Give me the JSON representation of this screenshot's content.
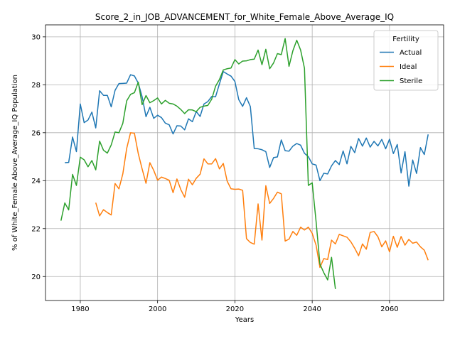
{
  "chart_data": {
    "type": "line",
    "title": "Score_2_in_JOB_ADVANCEMENT_for_White_Female_Above_Average_IQ",
    "xlabel": "Years",
    "ylabel": "% of White_Female Above_Average_IQ Population",
    "xlim": [
      1971,
      2074
    ],
    "ylim": [
      19,
      30.5
    ],
    "xticks": [
      1980,
      2000,
      2020,
      2040,
      2060
    ],
    "yticks": [
      20,
      22,
      24,
      26,
      28,
      30
    ],
    "grid": true,
    "legend": {
      "title": "Fertility",
      "placement": "top-right"
    },
    "series": [
      {
        "name": "Actual",
        "color": "#1f77b4",
        "x": [
          1976,
          1977,
          1978,
          1979,
          1980,
          1981,
          1982,
          1983,
          1984,
          1985,
          1986,
          1987,
          1988,
          1989,
          1990,
          1991,
          1992,
          1993,
          1994,
          1995,
          1996,
          1997,
          1998,
          1999,
          2000,
          2001,
          2002,
          2003,
          2004,
          2005,
          2006,
          2007,
          2008,
          2009,
          2010,
          2011,
          2012,
          2013,
          2014,
          2015,
          2016,
          2017,
          2018,
          2019,
          2020,
          2021,
          2022,
          2023,
          2024,
          2025,
          2026,
          2027,
          2028,
          2029,
          2030,
          2031,
          2032,
          2033,
          2034,
          2035,
          2036,
          2037,
          2038,
          2039,
          2040,
          2041,
          2042,
          2043,
          2044,
          2045,
          2046,
          2047,
          2048,
          2049,
          2050,
          2051,
          2052,
          2053,
          2054,
          2055,
          2056,
          2057,
          2058,
          2059,
          2060,
          2061,
          2062,
          2063,
          2064,
          2065,
          2066,
          2067,
          2068,
          2069,
          2070
        ],
        "values": [
          24.75,
          24.76,
          25.82,
          25.21,
          27.2,
          26.42,
          26.53,
          26.86,
          26.2,
          27.75,
          27.56,
          27.56,
          27.08,
          27.77,
          28.05,
          28.06,
          28.07,
          28.42,
          28.37,
          28.07,
          27.5,
          26.67,
          27.06,
          26.6,
          26.73,
          26.63,
          26.4,
          26.33,
          25.95,
          26.29,
          26.28,
          26.12,
          26.58,
          26.46,
          26.88,
          26.68,
          27.2,
          27.3,
          27.51,
          27.5,
          28.04,
          28.55,
          28.45,
          28.36,
          28.14,
          27.38,
          27.1,
          27.46,
          27.09,
          25.34,
          25.33,
          25.29,
          25.21,
          24.55,
          24.96,
          24.99,
          25.7,
          25.25,
          25.23,
          25.44,
          25.55,
          25.48,
          25.14,
          25.0,
          24.7,
          24.65,
          24.0,
          24.31,
          24.28,
          24.62,
          24.84,
          24.67,
          25.24,
          24.7,
          25.43,
          25.17,
          25.76,
          25.44,
          25.78,
          25.4,
          25.64,
          25.45,
          25.72,
          25.33,
          25.73,
          25.13,
          25.51,
          24.32,
          25.21,
          23.77,
          24.86,
          24.3,
          25.38,
          25.09,
          25.93
        ]
      },
      {
        "name": "Ideal",
        "color": "#ff7f0e",
        "x": [
          1984,
          1985,
          1986,
          1987,
          1988,
          1989,
          1990,
          1991,
          1992,
          1993,
          1994,
          1995,
          1996,
          1997,
          1998,
          1999,
          2000,
          2001,
          2002,
          2003,
          2004,
          2005,
          2006,
          2007,
          2008,
          2009,
          2010,
          2011,
          2012,
          2013,
          2014,
          2015,
          2016,
          2017,
          2018,
          2019,
          2020,
          2021,
          2022,
          2023,
          2024,
          2025,
          2026,
          2027,
          2028,
          2029,
          2030,
          2031,
          2032,
          2033,
          2034,
          2035,
          2036,
          2037,
          2038,
          2039,
          2040,
          2041,
          2042,
          2043,
          2044,
          2045,
          2046,
          2047,
          2048,
          2049,
          2050,
          2051,
          2052,
          2053,
          2054,
          2055,
          2056,
          2057,
          2058,
          2059,
          2060,
          2061,
          2062,
          2063,
          2064,
          2065,
          2066,
          2067,
          2068,
          2069,
          2070
        ],
        "values": [
          23.08,
          22.53,
          22.79,
          22.67,
          22.57,
          23.88,
          23.66,
          24.28,
          25.34,
          26.0,
          25.98,
          25.13,
          24.49,
          23.89,
          24.75,
          24.43,
          24.02,
          24.15,
          24.09,
          24.02,
          23.5,
          24.07,
          23.63,
          23.31,
          24.06,
          23.83,
          24.1,
          24.27,
          24.91,
          24.7,
          24.7,
          24.92,
          24.49,
          24.72,
          23.98,
          23.66,
          23.64,
          23.65,
          23.6,
          21.58,
          21.42,
          21.35,
          23.03,
          21.52,
          23.79,
          23.05,
          23.26,
          23.52,
          23.45,
          21.48,
          21.56,
          21.88,
          21.72,
          22.06,
          21.94,
          22.06,
          21.8,
          21.31,
          20.38,
          20.75,
          20.71,
          21.52,
          21.36,
          21.76,
          21.7,
          21.64,
          21.45,
          21.18,
          20.87,
          21.36,
          21.14,
          21.84,
          21.88,
          21.66,
          21.24,
          21.49,
          21.03,
          21.68,
          21.22,
          21.67,
          21.31,
          21.55,
          21.39,
          21.44,
          21.24,
          21.1,
          20.68
        ]
      },
      {
        "name": "Sterile",
        "color": "#2ca02c",
        "x": [
          1975,
          1976,
          1977,
          1978,
          1979,
          1980,
          1981,
          1982,
          1983,
          1984,
          1985,
          1986,
          1987,
          1988,
          1989,
          1990,
          1991,
          1992,
          1993,
          1994,
          1995,
          1996,
          1997,
          1998,
          1999,
          2000,
          2001,
          2002,
          2003,
          2004,
          2005,
          2006,
          2007,
          2008,
          2009,
          2010,
          2011,
          2012,
          2013,
          2014,
          2015,
          2016,
          2017,
          2018,
          2019,
          2020,
          2021,
          2022,
          2023,
          2024,
          2025,
          2026,
          2027,
          2028,
          2029,
          2030,
          2031,
          2032,
          2033,
          2034,
          2035,
          2036,
          2037,
          2038,
          2039,
          2040,
          2041,
          2042,
          2043,
          2044,
          2045,
          2046
        ],
        "values": [
          22.33,
          23.07,
          22.78,
          24.26,
          23.8,
          24.98,
          24.87,
          24.58,
          24.84,
          24.45,
          25.65,
          25.27,
          25.15,
          25.49,
          26.03,
          26.0,
          26.39,
          27.33,
          27.6,
          27.67,
          28.11,
          27.17,
          27.55,
          27.25,
          27.34,
          27.45,
          27.2,
          27.35,
          27.23,
          27.2,
          27.11,
          26.97,
          26.8,
          26.96,
          26.95,
          26.88,
          27.06,
          27.11,
          27.14,
          27.4,
          27.94,
          28.22,
          28.62,
          28.67,
          28.7,
          29.05,
          28.87,
          28.99,
          29.0,
          29.05,
          29.07,
          29.45,
          28.84,
          29.48,
          28.67,
          28.91,
          29.3,
          29.26,
          29.93,
          28.77,
          29.42,
          29.86,
          29.45,
          28.69,
          23.8,
          23.91,
          22.3,
          20.52,
          20.16,
          19.86,
          20.8,
          19.48
        ]
      }
    ]
  }
}
